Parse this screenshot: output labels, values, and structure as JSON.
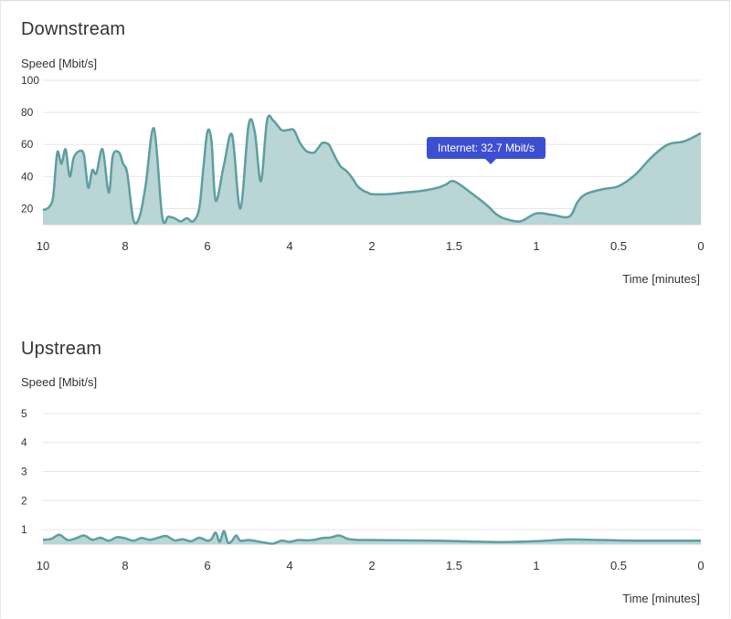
{
  "colors": {
    "line": "#5f9ea0",
    "fill": "#b9d5d6",
    "grid": "#e6e6e6",
    "tooltip": "#3d4fd1"
  },
  "tooltip": {
    "text": "Internet: 32.7 Mbit/s"
  },
  "chart_data": [
    {
      "type": "area",
      "title": "Downstream",
      "ylabel": "Speed [Mbit/s]",
      "xlabel": "Time [minutes]",
      "xlim": [
        10,
        0
      ],
      "ylim": [
        10,
        100
      ],
      "xticks": [
        "10",
        "8",
        "6",
        "4",
        "2",
        "1.5",
        "1",
        "0.5",
        "0"
      ],
      "yticks": [
        20,
        40,
        60,
        80,
        100
      ],
      "series": [
        {
          "x": [
            10,
            9.85,
            9.75,
            9.65,
            9.55,
            9.45,
            9.35,
            9.25,
            9.1,
            9.0,
            8.9,
            8.8,
            8.7,
            8.55,
            8.4,
            8.3,
            8.15,
            8.05,
            7.95,
            7.8,
            7.65,
            7.5,
            7.3,
            7.1,
            6.95,
            6.8,
            6.65,
            6.5,
            6.35,
            6.2,
            6.1,
            6.0,
            5.9,
            5.8,
            5.6,
            5.4,
            5.2,
            5.0,
            4.85,
            4.7,
            4.55,
            4.4,
            4.2,
            4.05,
            3.9,
            3.75,
            3.6,
            3.5,
            3.4,
            3.3,
            3.2,
            3.05,
            2.95,
            2.85,
            2.75,
            2.6,
            2.45,
            2.35,
            2.2,
            2.1,
            2.0,
            1.9,
            1.8,
            1.7,
            1.6,
            1.55,
            1.5,
            1.4,
            1.3,
            1.25,
            1.2,
            1.1,
            1.0,
            0.9,
            0.8,
            0.75,
            0.7,
            0.6,
            0.5,
            0.4,
            0.3,
            0.2,
            0.1,
            0
          ],
          "y": [
            19,
            21,
            28,
            55,
            48,
            57,
            40,
            52,
            56,
            53,
            33,
            44,
            42,
            57,
            30,
            53,
            55,
            48,
            42,
            13,
            15,
            35,
            70,
            15,
            15,
            14,
            12,
            14,
            12,
            20,
            45,
            68,
            62,
            25,
            47,
            66,
            20,
            72,
            68,
            37,
            75,
            75,
            69,
            69,
            69,
            61,
            56,
            55,
            55,
            58,
            61,
            60,
            55,
            50,
            46,
            43,
            38,
            34,
            31,
            30,
            29,
            29,
            30,
            31,
            33,
            35,
            37,
            30,
            22,
            17,
            14,
            12,
            17,
            16,
            15,
            24,
            29,
            32,
            34,
            41,
            52,
            60,
            62,
            67
          ]
        }
      ]
    },
    {
      "type": "area",
      "title": "Upstream",
      "ylabel": "Speed [Mbit/s]",
      "xlabel": "Time [minutes]",
      "xlim": [
        10,
        0
      ],
      "ylim": [
        0.5,
        5.5
      ],
      "xticks": [
        "10",
        "8",
        "6",
        "4",
        "2",
        "1.5",
        "1",
        "0.5",
        "0"
      ],
      "yticks": [
        1,
        2,
        3,
        4,
        5
      ],
      "series": [
        {
          "x": [
            10,
            9.8,
            9.6,
            9.4,
            9.2,
            9.0,
            8.8,
            8.6,
            8.4,
            8.2,
            8.0,
            7.8,
            7.6,
            7.4,
            7.2,
            7.0,
            6.8,
            6.6,
            6.4,
            6.2,
            6.0,
            5.9,
            5.8,
            5.7,
            5.6,
            5.5,
            5.4,
            5.3,
            5.2,
            5.0,
            4.8,
            4.6,
            4.4,
            4.2,
            4.0,
            3.8,
            3.6,
            3.4,
            3.2,
            3.0,
            2.8,
            2.6,
            2.4,
            2.2,
            2.0,
            1.8,
            1.6,
            1.4,
            1.2,
            1.0,
            0.8,
            0.6,
            0.4,
            0.2,
            0
          ],
          "y": [
            0.65,
            0.68,
            0.82,
            0.64,
            0.7,
            0.8,
            0.65,
            0.72,
            0.62,
            0.74,
            0.7,
            0.62,
            0.71,
            0.65,
            0.72,
            0.78,
            0.63,
            0.67,
            0.6,
            0.72,
            0.62,
            0.68,
            0.9,
            0.58,
            0.95,
            0.55,
            0.62,
            0.8,
            0.62,
            0.64,
            0.6,
            0.55,
            0.52,
            0.62,
            0.58,
            0.64,
            0.63,
            0.65,
            0.71,
            0.73,
            0.8,
            0.69,
            0.65,
            0.64,
            0.64,
            0.63,
            0.62,
            0.59,
            0.57,
            0.6,
            0.66,
            0.64,
            0.62,
            0.62,
            0.62
          ]
        }
      ]
    }
  ]
}
